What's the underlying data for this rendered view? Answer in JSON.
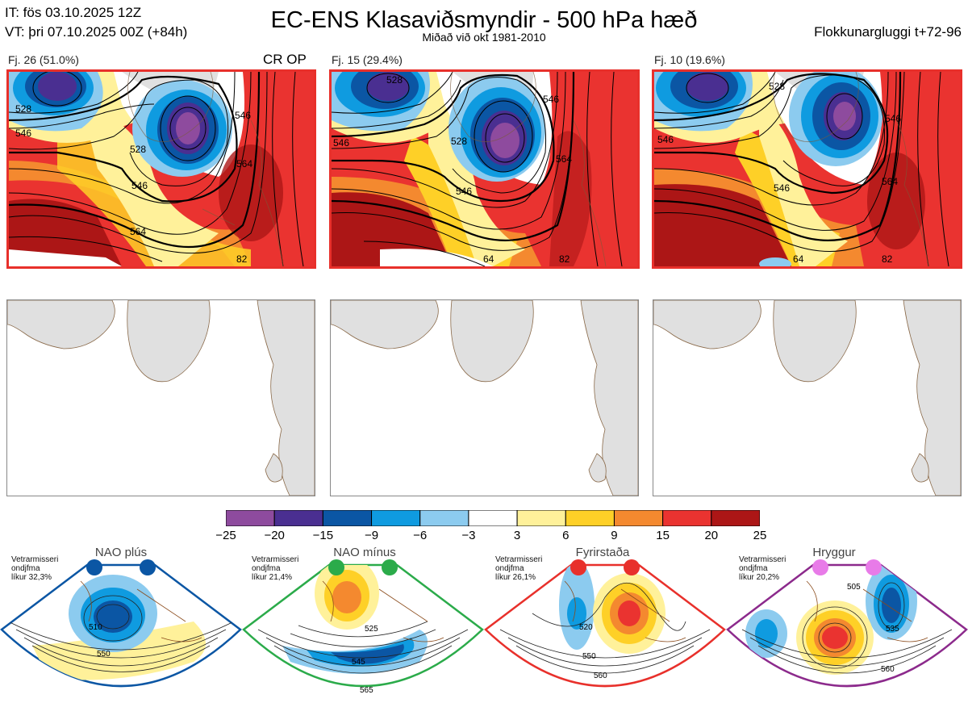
{
  "header": {
    "it_line": "IT: fös 03.10.2025 12Z",
    "vt_line": "VT: þri 07.10.2025 00Z  (+84h)",
    "title": "EC-ENS Klasaviðsmyndir - 500 hPa hæð",
    "subtitle": "Miðað við okt 1981-2010",
    "window": "Flokkunargluggi t+72-96"
  },
  "clusters": [
    {
      "label": "Fj. 26 (51.0%)",
      "tag": "CR OP",
      "contours": [
        "528",
        "546",
        "564",
        "546",
        "528",
        "564",
        "82",
        "546"
      ]
    },
    {
      "label": "Fj. 15 (29.4%)",
      "tag": "",
      "contours": [
        "528",
        "546",
        "528",
        "546",
        "564",
        "546",
        "82",
        "64"
      ]
    },
    {
      "label": "Fj. 10 (19.6%)",
      "tag": "",
      "contours": [
        "528",
        "546",
        "546",
        "546",
        "564",
        "82",
        "64"
      ]
    }
  ],
  "colorbar": {
    "ticks": [
      "−25",
      "−20",
      "−15",
      "−9",
      "−6",
      "−3",
      "3",
      "6",
      "9",
      "15",
      "20",
      "25"
    ],
    "colors": [
      "#8e4b9e",
      "#4a2f91",
      "#0b56a4",
      "#0f9be0",
      "#8ccbef",
      "#ffffff",
      "#fff19a",
      "#fed027",
      "#f4892f",
      "#ea3330",
      "#ac1616"
    ]
  },
  "regimes": [
    {
      "name": "NAO plús",
      "note": [
        "Vetrarmisseri",
        "ondjfma",
        "líkur 32,3%"
      ],
      "color": "#0b56a4",
      "labels": [
        "510",
        "550"
      ]
    },
    {
      "name": "NAO mínus",
      "note": [
        "Vetrarmisseri",
        "ondjfma",
        "líkur 21,4%"
      ],
      "color": "#2bab4a",
      "labels": [
        "525",
        "545",
        "565"
      ]
    },
    {
      "name": "Fyrirstaða",
      "note": [
        "Vetrarmisseri",
        "ondjfma",
        "líkur 26,1%"
      ],
      "color": "#e8302b",
      "labels": [
        "520",
        "550",
        "560"
      ]
    },
    {
      "name": "Hryggur",
      "note": [
        "Vetrarmisseri",
        "ondjfma",
        "líkur 20,2%"
      ],
      "color": "#8c2a8c",
      "labels": [
        "505",
        "535",
        "560"
      ]
    }
  ]
}
